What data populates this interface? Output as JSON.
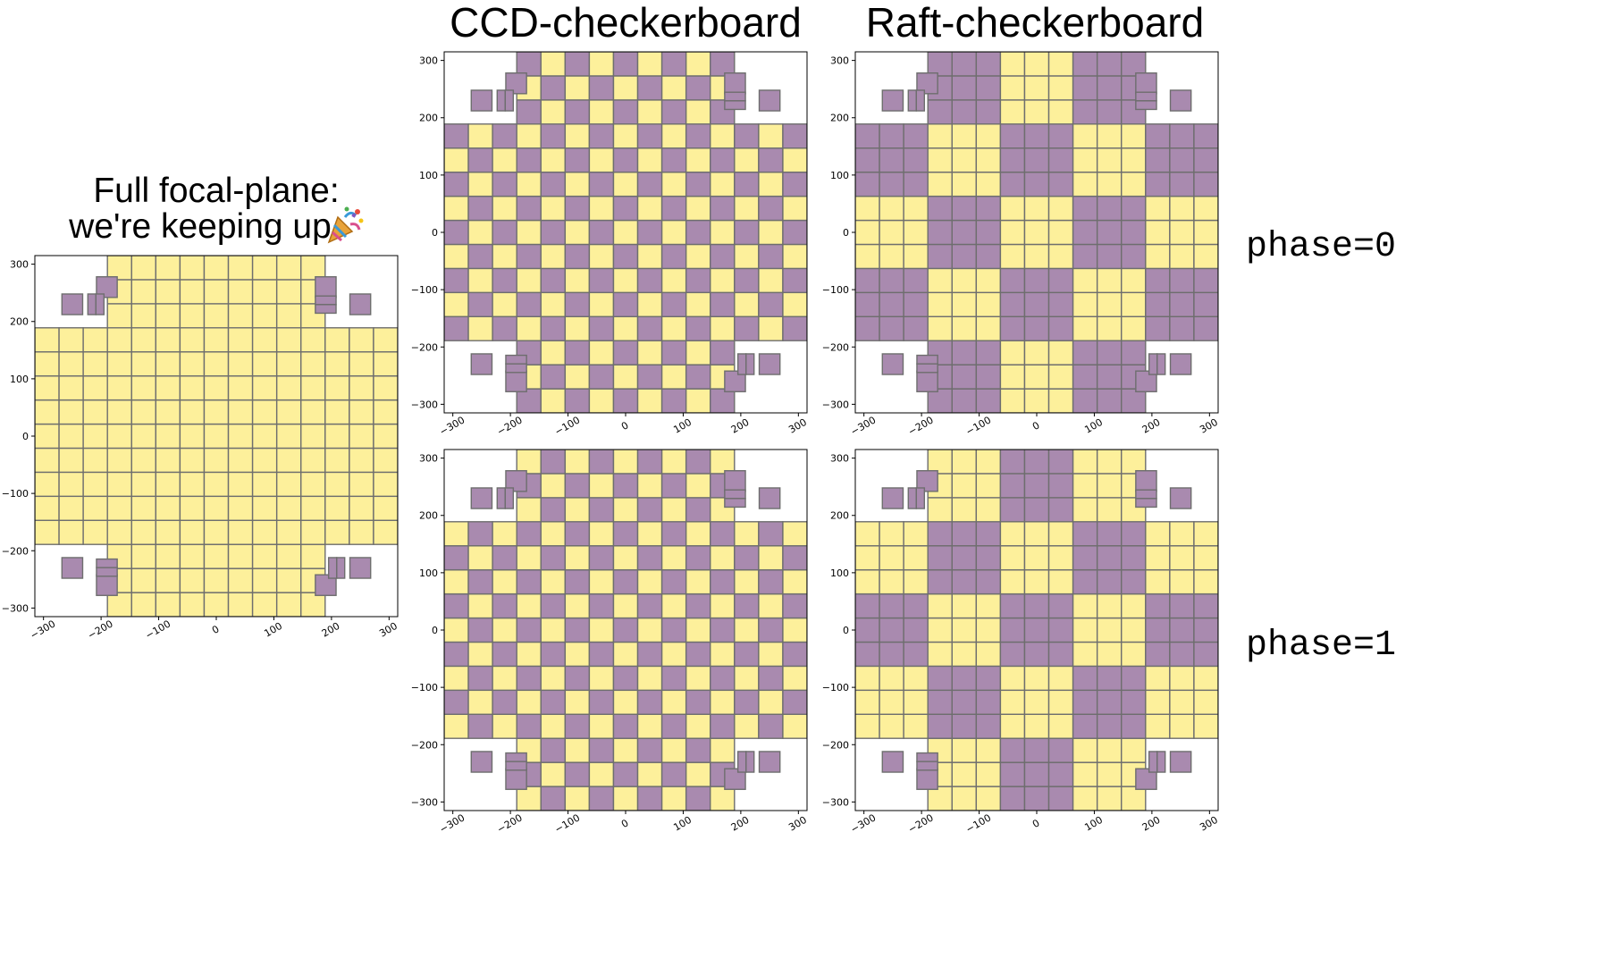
{
  "titles": {
    "full_line1": "Full focal-plane:",
    "full_line2": "we're keeping up",
    "ccd": "CCD-checkerboard",
    "raft": "Raft-checkerboard"
  },
  "phase_labels": [
    "phase=0",
    "phase=1"
  ],
  "icons": {
    "party": "party-popper-icon"
  },
  "colors": {
    "yellow": "#fdf09b",
    "purple": "#a98aaf",
    "edge": "#6e6e6e"
  },
  "axis": {
    "xlim": [
      -315,
      315
    ],
    "ylim": [
      -315,
      315
    ],
    "ticks": [
      -300,
      -200,
      -100,
      0,
      100,
      200,
      300
    ],
    "tick_labels": [
      "−300",
      "−200",
      "−100",
      "0",
      "100",
      "200",
      "300"
    ]
  },
  "focal_plane": {
    "raft_pitch_mm": 126,
    "ccd_per_raft_side": 3,
    "science_rafts_cols_rows_excluded_corners": true
  },
  "plots": [
    {
      "id": "full",
      "pattern": "full"
    },
    {
      "id": "ccd0",
      "pattern": "ccd",
      "phase": 0
    },
    {
      "id": "raft0",
      "pattern": "raft",
      "phase": 0
    },
    {
      "id": "ccd1",
      "pattern": "ccd",
      "phase": 1
    },
    {
      "id": "raft1",
      "pattern": "raft",
      "phase": 1
    }
  ]
}
